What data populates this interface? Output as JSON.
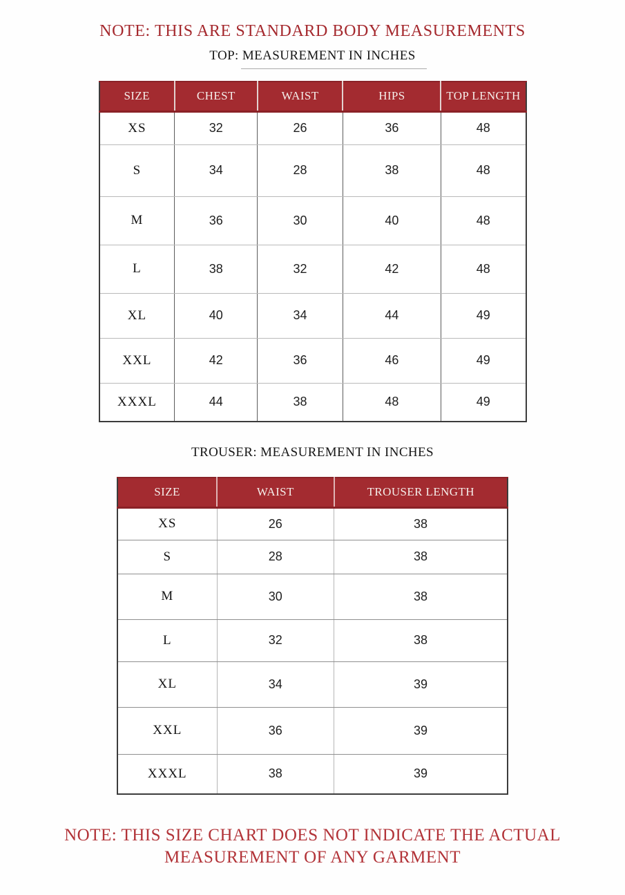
{
  "notes": {
    "top": "NOTE: THIS ARE STANDARD BODY MEASUREMENTS",
    "bottom_line1": "NOTE: THIS SIZE CHART DOES NOT INDICATE THE ACTUAL",
    "bottom_line2": "MEASUREMENT OF ANY GARMENT"
  },
  "colors": {
    "table_header_background": "#a32b30",
    "table_header_text": "#f5eeea",
    "top_note_text": "#a5292e",
    "bottom_note_text": "#b23338",
    "table_outer_border": "#3b3b3b"
  },
  "top_table": {
    "title_prefix": "TOP: ",
    "title_underlined": "MEASUREMENT IN INCHES",
    "headers": [
      "SIZE",
      "CHEST",
      "WAIST",
      "HIPS",
      "TOP LENGTH"
    ],
    "rows": [
      [
        "XS",
        "32",
        "26",
        "36",
        "48"
      ],
      [
        "S",
        "34",
        "28",
        "38",
        "48"
      ],
      [
        "M",
        "36",
        "30",
        "40",
        "48"
      ],
      [
        "L",
        "38",
        "32",
        "42",
        "48"
      ],
      [
        "XL",
        "40",
        "34",
        "44",
        "49"
      ],
      [
        "XXL",
        "42",
        "36",
        "46",
        "49"
      ],
      [
        "XXXL",
        "44",
        "38",
        "48",
        "49"
      ]
    ]
  },
  "trouser_table": {
    "title": "TROUSER: MEASUREMENT IN INCHES",
    "headers": [
      "SIZE",
      "WAIST",
      "TROUSER LENGTH"
    ],
    "rows": [
      [
        "XS",
        "26",
        "38"
      ],
      [
        "S",
        "28",
        "38"
      ],
      [
        "M",
        "30",
        "38"
      ],
      [
        "L",
        "32",
        "38"
      ],
      [
        "XL",
        "34",
        "39"
      ],
      [
        "XXL",
        "36",
        "39"
      ],
      [
        "XXXL",
        "38",
        "39"
      ]
    ]
  }
}
